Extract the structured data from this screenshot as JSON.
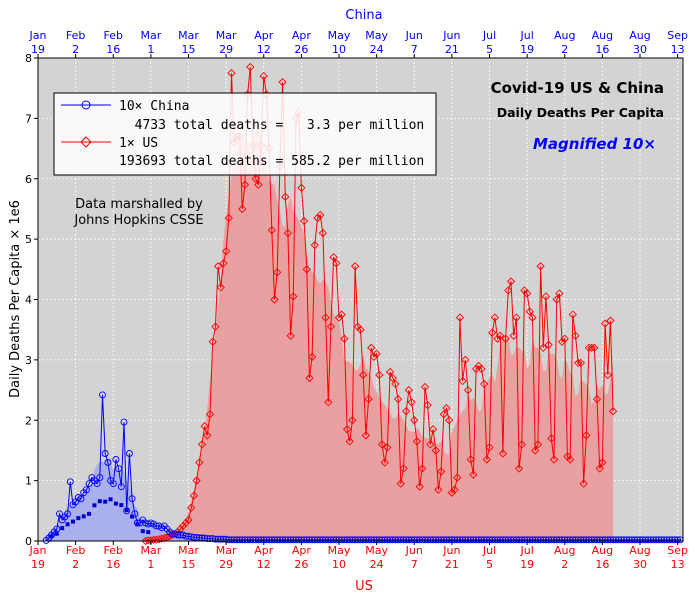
{
  "chart_data": {
    "type": "line",
    "title": "Covid-19 US & China",
    "subtitle": "Daily Deaths Per Capita",
    "magnified_note": "Magnified 10×",
    "top_axis_label": "China",
    "bottom_axis_label": "US",
    "ylabel": "Daily Deaths Per Capita × 1e6",
    "ylim": [
      0,
      8
    ],
    "y_ticks": [
      "0",
      "1",
      "2",
      "3",
      "4",
      "5",
      "6",
      "7",
      "8"
    ],
    "x_ticks": [
      {
        "day": 0,
        "line1": "Jan",
        "line2": "19"
      },
      {
        "day": 14,
        "line1": "Feb",
        "line2": "2"
      },
      {
        "day": 28,
        "line1": "Feb",
        "line2": "16"
      },
      {
        "day": 42,
        "line1": "Mar",
        "line2": "1"
      },
      {
        "day": 56,
        "line1": "Mar",
        "line2": "15"
      },
      {
        "day": 70,
        "line1": "Mar",
        "line2": "29"
      },
      {
        "day": 84,
        "line1": "Apr",
        "line2": "12"
      },
      {
        "day": 98,
        "line1": "Apr",
        "line2": "26"
      },
      {
        "day": 112,
        "line1": "May",
        "line2": "10"
      },
      {
        "day": 126,
        "line1": "May",
        "line2": "24"
      },
      {
        "day": 140,
        "line1": "Jun",
        "line2": "7"
      },
      {
        "day": 154,
        "line1": "Jun",
        "line2": "21"
      },
      {
        "day": 168,
        "line1": "Jul",
        "line2": "5"
      },
      {
        "day": 182,
        "line1": "Jul",
        "line2": "19"
      },
      {
        "day": 196,
        "line1": "Aug",
        "line2": "2"
      },
      {
        "day": 210,
        "line1": "Aug",
        "line2": "16"
      },
      {
        "day": 224,
        "line1": "Aug",
        "line2": "30"
      },
      {
        "day": 238,
        "line1": "Sep",
        "line2": "13"
      }
    ],
    "xlim_days": [
      0,
      240
    ],
    "annotation": [
      "Data marshalled by",
      "Johns Hopkins CSSE"
    ],
    "legend": {
      "position": "upper-left",
      "entries": [
        {
          "label": "10× China",
          "detail": "  4733 total deaths =   3.3 per million",
          "color": "#0000ff",
          "marker": "circle"
        },
        {
          "label": "1× US",
          "detail": "193693 total deaths = 585.2 per million",
          "color": "#ff0000",
          "marker": "diamond"
        }
      ]
    },
    "grid": true,
    "colors": {
      "china": "#0000ff",
      "us": "#ff0000",
      "us_fill": "#e8a0a0",
      "china_fill": "#aab0ee",
      "plot_bg": "#d3d3d3"
    },
    "series": [
      {
        "name": "10× China",
        "start_day": 3,
        "values": [
          0.01,
          0.05,
          0.1,
          0.15,
          0.2,
          0.45,
          0.35,
          0.4,
          0.45,
          0.98,
          0.6,
          0.65,
          0.72,
          0.7,
          0.8,
          0.85,
          0.95,
          1.05,
          1.0,
          0.95,
          1.05,
          2.42,
          1.45,
          1.3,
          1.0,
          0.95,
          1.35,
          1.2,
          0.9,
          1.97,
          0.5,
          1.45,
          0.7,
          0.45,
          0.3,
          0.3,
          0.35,
          0.3,
          0.28,
          0.3,
          0.28,
          0.25,
          0.25,
          0.22,
          0.25,
          0.2,
          0.15,
          0.12,
          0.12,
          0.1,
          0.1,
          0.1,
          0.08,
          0.08,
          0.07,
          0.06,
          0.06,
          0.05,
          0.05,
          0.05,
          0.04,
          0.04,
          0.04,
          0.03,
          0.03,
          0.03,
          0.03,
          0.03,
          0.02,
          0.02,
          0.02,
          0.02,
          0.02,
          0.02,
          0.02,
          0.02,
          0.02,
          0.02,
          0.02,
          0.02,
          0.02,
          0.02,
          0.02,
          0.02,
          0.02,
          0.02,
          0.02,
          0.02,
          0.02,
          0.02,
          0.02,
          0.02,
          0.02,
          0.02,
          0.02,
          0.02,
          0.02,
          0.02,
          0.02,
          0.02,
          0.02,
          0.02,
          0.02,
          0.02,
          0.02,
          0.02,
          0.02,
          0.02,
          0.02,
          0.02,
          0.02,
          0.02,
          0.02,
          0.02,
          0.02,
          0.02,
          0.02,
          0.02,
          0.02,
          0.02,
          0.02,
          0.02,
          0.02,
          0.02,
          0.02,
          0.02,
          0.02,
          0.02,
          0.02,
          0.02,
          0.02,
          0.02,
          0.02,
          0.02,
          0.02,
          0.02,
          0.02,
          0.02,
          0.02,
          0.02,
          0.02,
          0.02,
          0.02,
          0.02,
          0.02,
          0.02,
          0.02,
          0.02,
          0.02,
          0.02,
          0.02,
          0.02,
          0.02,
          0.02,
          0.02,
          0.02,
          0.02,
          0.02,
          0.02,
          0.02,
          0.02,
          0.02,
          0.02,
          0.02,
          0.02,
          0.02,
          0.02,
          0.02,
          0.02,
          0.02,
          0.02,
          0.02,
          0.02,
          0.02,
          0.02,
          0.02,
          0.02,
          0.02,
          0.02,
          0.02,
          0.02,
          0.02,
          0.02,
          0.02,
          0.02,
          0.02,
          0.02,
          0.02,
          0.02,
          0.02,
          0.02,
          0.02,
          0.02,
          0.02,
          0.02,
          0.02,
          0.02,
          0.02,
          0.02,
          0.02,
          0.02,
          0.02,
          0.02,
          0.02,
          0.02,
          0.02,
          0.02,
          0.02,
          0.02,
          0.02,
          0.02,
          0.02,
          0.02,
          0.02,
          0.02,
          0.02,
          0.02,
          0.02,
          0.02,
          0.02,
          0.02,
          0.02,
          0.02,
          0.02,
          0.02,
          0.02,
          0.02,
          0.02,
          0.02,
          0.02,
          0.02,
          0.02,
          0.02,
          0.02,
          0.02,
          0.02,
          0.02
        ]
      },
      {
        "name": "1× US",
        "start_day": 40,
        "values": [
          0.0,
          0.01,
          0.01,
          0.02,
          0.02,
          0.03,
          0.04,
          0.05,
          0.06,
          0.08,
          0.1,
          0.12,
          0.15,
          0.2,
          0.25,
          0.3,
          0.35,
          0.55,
          0.75,
          1.0,
          1.3,
          1.6,
          1.9,
          1.75,
          2.1,
          3.3,
          3.55,
          4.55,
          4.2,
          4.6,
          4.8,
          5.35,
          7.75,
          6.6,
          6.7,
          6.7,
          5.5,
          5.9,
          7.4,
          7.85,
          6.55,
          6.0,
          5.9,
          6.55,
          7.7,
          7.4,
          6.5,
          5.15,
          4.0,
          4.45,
          6.2,
          7.6,
          5.7,
          5.1,
          3.4,
          4.05,
          7.0,
          7.1,
          5.85,
          5.3,
          4.5,
          2.7,
          3.05,
          4.9,
          5.35,
          5.4,
          5.1,
          3.7,
          2.3,
          3.55,
          4.7,
          4.6,
          3.7,
          3.75,
          3.35,
          1.85,
          1.65,
          2.0,
          4.55,
          3.55,
          3.5,
          2.75,
          1.75,
          2.35,
          3.2,
          3.05,
          3.1,
          2.75,
          1.6,
          1.3,
          1.55,
          2.8,
          2.7,
          2.6,
          2.35,
          0.95,
          1.2,
          2.15,
          2.5,
          2.3,
          2.0,
          1.65,
          0.9,
          1.2,
          2.55,
          2.25,
          1.6,
          1.85,
          1.5,
          0.85,
          1.15,
          2.1,
          2.2,
          2.0,
          0.8,
          0.85,
          1.05,
          3.7,
          2.65,
          3.0,
          2.5,
          1.35,
          1.1,
          2.85,
          2.9,
          2.85,
          2.6,
          1.35,
          1.55,
          3.45,
          3.7,
          3.35,
          3.4,
          1.45,
          3.35,
          4.15,
          4.3,
          3.4,
          3.7,
          1.2,
          1.6,
          4.15,
          4.1,
          3.8,
          3.7,
          1.5,
          1.6,
          4.55,
          3.2,
          4.05,
          3.25,
          1.7,
          1.35,
          4.0,
          4.1,
          3.3,
          3.35,
          1.4,
          1.35,
          3.75,
          3.4,
          2.95,
          2.95,
          0.95,
          1.75,
          3.2,
          3.2,
          3.2,
          2.35,
          1.2,
          1.3,
          3.6,
          2.75,
          3.65,
          2.15
        ]
      }
    ]
  }
}
